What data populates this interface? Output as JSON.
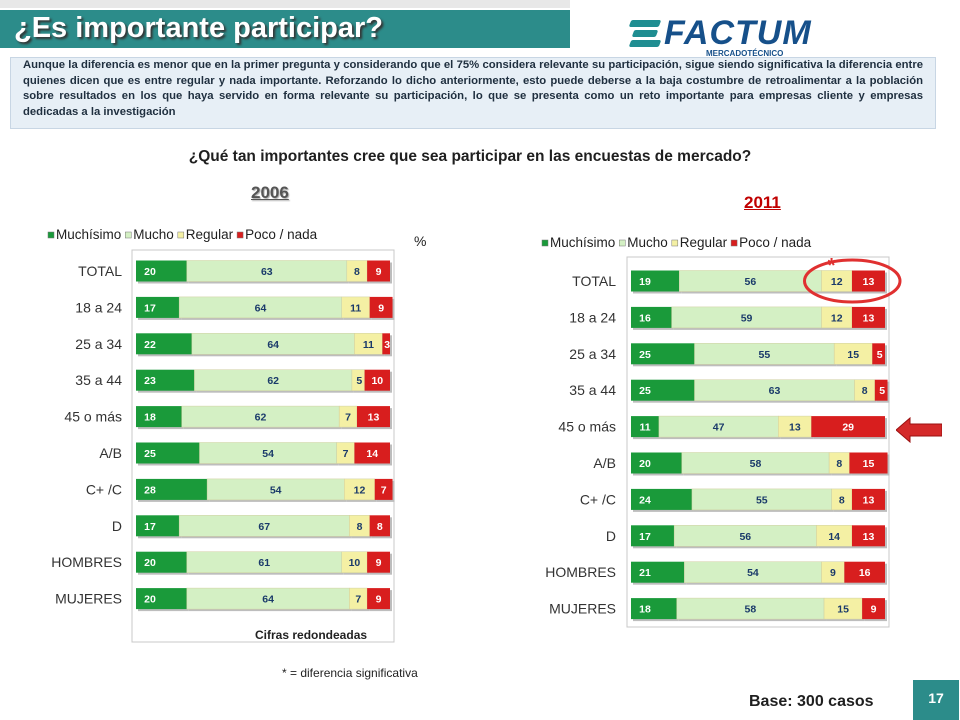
{
  "header": {
    "title": "¿Es importante participar?"
  },
  "logo": {
    "name": "FACTUM",
    "tagline": "MERCADOTÉCNICO"
  },
  "intro_text": "Aunque la diferencia es menor que en la primer pregunta y considerando que el 75% considera relevante su participación, sigue siendo significativa la diferencia entre quienes dicen que es entre regular y nada importante. Reforzando lo dicho anteriormente, esto puede deberse a la baja costumbre de retroalimentar a la población sobre resultados en los que haya servido en forma relevante su participación, lo que se presenta como un reto importante para empresas cliente y empresas dedicadas a la investigación",
  "question": "¿Qué tan importantes cree que sea participar en las encuestas de mercado?",
  "unit": "%",
  "notes": {
    "rounded": "Cifras redondeadas",
    "significance": "* = diferencia significativa",
    "base": "Base: 300 casos"
  },
  "page_number": "17",
  "colors": {
    "muchisimo": "#1a9a3a",
    "mucho": "#d4f0c4",
    "regular": "#f4f0a4",
    "poco": "#d81e1e",
    "highlight": "#e03030"
  },
  "chart_data": [
    {
      "type": "bar",
      "orientation": "horizontal",
      "stacked": true,
      "title": "2006",
      "legend_position": "top",
      "categories": [
        "TOTAL",
        "18 a 24",
        "25 a 34",
        "35 a 44",
        "45 o más",
        "A/B",
        "C+ /C",
        "D",
        "HOMBRES",
        "MUJERES"
      ],
      "series": [
        {
          "name": "Muchísimo",
          "values": [
            20,
            17,
            22,
            23,
            18,
            25,
            28,
            17,
            20,
            20
          ]
        },
        {
          "name": "Mucho",
          "values": [
            63,
            64,
            64,
            62,
            62,
            54,
            54,
            67,
            61,
            64
          ]
        },
        {
          "name": "Regular",
          "values": [
            8,
            11,
            11,
            5,
            7,
            7,
            12,
            8,
            10,
            7
          ]
        },
        {
          "name": "Poco / nada",
          "values": [
            9,
            9,
            3,
            10,
            13,
            14,
            7,
            8,
            9,
            9
          ]
        }
      ]
    },
    {
      "type": "bar",
      "orientation": "horizontal",
      "stacked": true,
      "title": "2011",
      "legend_position": "top",
      "categories": [
        "TOTAL",
        "18 a 24",
        "25 a 34",
        "35 a 44",
        "45 o más",
        "A/B",
        "C+ /C",
        "D",
        "HOMBRES",
        "MUJERES"
      ],
      "series": [
        {
          "name": "Muchísimo",
          "values": [
            19,
            16,
            25,
            25,
            11,
            20,
            24,
            17,
            21,
            18
          ]
        },
        {
          "name": "Mucho",
          "values": [
            56,
            59,
            55,
            63,
            47,
            58,
            55,
            56,
            54,
            58
          ]
        },
        {
          "name": "Regular",
          "values": [
            12,
            12,
            15,
            8,
            13,
            8,
            8,
            14,
            9,
            15
          ]
        },
        {
          "name": "Poco / nada",
          "values": [
            13,
            13,
            5,
            5,
            29,
            15,
            13,
            13,
            16,
            9
          ]
        }
      ],
      "annotations": [
        {
          "category": "TOTAL",
          "series": "Regular",
          "text": "*",
          "highlight": "circle"
        },
        {
          "category": "45 o más",
          "highlight": "arrow"
        }
      ]
    }
  ]
}
